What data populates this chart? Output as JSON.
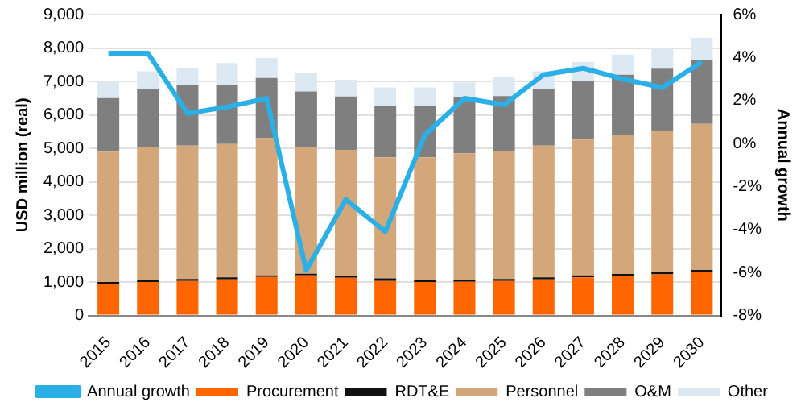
{
  "chart_data": {
    "type": "bar",
    "stacked": true,
    "ylabel": "USD million (real)",
    "y2label": "Annual growth",
    "categories": [
      "2015",
      "2016",
      "2017",
      "2018",
      "2019",
      "2020",
      "2021",
      "2022",
      "2023",
      "2024",
      "2025",
      "2026",
      "2027",
      "2028",
      "2029",
      "2030"
    ],
    "ylim": [
      0,
      9000
    ],
    "yticks": [
      {
        "value": 0,
        "label": "0"
      },
      {
        "value": 1000,
        "label": "1,000"
      },
      {
        "value": 2000,
        "label": "2,000"
      },
      {
        "value": 3000,
        "label": "3,000"
      },
      {
        "value": 4000,
        "label": "4,000"
      },
      {
        "value": 5000,
        "label": "5,000"
      },
      {
        "value": 6000,
        "label": "6,000"
      },
      {
        "value": 7000,
        "label": "7,000"
      },
      {
        "value": 8000,
        "label": "8,000"
      },
      {
        "value": 9000,
        "label": "9,000"
      }
    ],
    "y2lim": [
      -8,
      6
    ],
    "y2ticks": [
      {
        "value": -8,
        "label": "-8%"
      },
      {
        "value": -6,
        "label": "-6%"
      },
      {
        "value": -4,
        "label": "-4%"
      },
      {
        "value": -2,
        "label": "-2%"
      },
      {
        "value": 0,
        "label": "0%"
      },
      {
        "value": 2,
        "label": "2%"
      },
      {
        "value": 4,
        "label": "4%"
      },
      {
        "value": 6,
        "label": "6%"
      }
    ],
    "grid": "y",
    "legend": "bottom",
    "series": [
      {
        "name": "Procurement",
        "color": "#ff6600",
        "values": [
          950,
          1000,
          1030,
          1080,
          1150,
          1200,
          1130,
          1030,
          1000,
          1010,
          1030,
          1080,
          1140,
          1180,
          1230,
          1300
        ]
      },
      {
        "name": "RDT&E",
        "color": "#111111",
        "values": [
          50,
          60,
          60,
          60,
          50,
          50,
          50,
          80,
          60,
          60,
          60,
          60,
          60,
          60,
          60,
          60
        ]
      },
      {
        "name": "Personnel",
        "color": "#d4a77a",
        "values": [
          3900,
          3990,
          3990,
          3990,
          4100,
          3780,
          3770,
          3620,
          3670,
          3780,
          3830,
          3940,
          4060,
          4170,
          4240,
          4370
        ]
      },
      {
        "name": "O&M",
        "color": "#7f7f7f",
        "values": [
          1600,
          1720,
          1800,
          1770,
          1800,
          1670,
          1600,
          1530,
          1530,
          1670,
          1640,
          1690,
          1760,
          1790,
          1850,
          1920
        ]
      },
      {
        "name": "Other",
        "color": "#dce9f3",
        "values": [
          500,
          530,
          520,
          650,
          600,
          550,
          500,
          560,
          560,
          450,
          560,
          530,
          560,
          600,
          620,
          650
        ]
      },
      {
        "name": "Annual growth",
        "type": "line",
        "axis": "y2",
        "color": "#2ab0e6",
        "values": [
          4.2,
          4.2,
          1.4,
          1.7,
          2.1,
          -5.9,
          -2.6,
          -4.1,
          0.4,
          2.1,
          1.8,
          3.2,
          3.5,
          3.0,
          2.6,
          3.8
        ]
      }
    ]
  }
}
